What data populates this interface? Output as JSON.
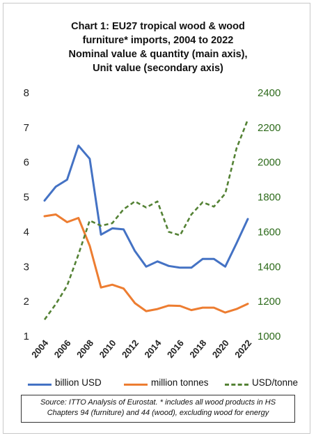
{
  "title_lines": [
    "Chart 1: EU27 tropical wood & wood",
    "furniture* imports, 2004 to 2022",
    "Nominal value & quantity (main axis),",
    "Unit value (secondary axis)"
  ],
  "source_note": "Source: ITTO Analysis of Eurostat. * includes all wood products in HS Chapters 94 (furniture) and 44 (wood), excluding wood for energy",
  "chart_data": {
    "type": "line",
    "x": [
      2004,
      2005,
      2006,
      2007,
      2008,
      2009,
      2010,
      2011,
      2012,
      2013,
      2014,
      2015,
      2016,
      2017,
      2018,
      2019,
      2020,
      2021,
      2022
    ],
    "x_tick_labels": [
      "2004",
      "2006",
      "2008",
      "2010",
      "2012",
      "2014",
      "2016",
      "2018",
      "2020",
      "2022"
    ],
    "ylim": [
      1,
      8
    ],
    "y_ticks": [
      "1",
      "2",
      "3",
      "4",
      "5",
      "6",
      "7",
      "8"
    ],
    "y2lim": [
      1000,
      2400
    ],
    "y2_ticks": [
      "1000",
      "1200",
      "1400",
      "1600",
      "1800",
      "2000",
      "2200",
      "2400"
    ],
    "grid": false,
    "legend_position": "bottom",
    "series": [
      {
        "name": "billion USD",
        "axis": "primary",
        "color": "#4472c4",
        "style": "solid",
        "values": [
          4.9,
          5.3,
          5.5,
          6.48,
          6.1,
          3.92,
          4.1,
          4.07,
          3.45,
          3.0,
          3.15,
          3.02,
          2.97,
          2.97,
          3.22,
          3.22,
          3.0,
          3.67,
          4.37
        ]
      },
      {
        "name": "million tonnes",
        "axis": "primary",
        "color": "#ed7d31",
        "style": "solid",
        "values": [
          4.45,
          4.5,
          4.28,
          4.4,
          3.6,
          2.4,
          2.48,
          2.37,
          1.95,
          1.72,
          1.78,
          1.88,
          1.87,
          1.75,
          1.82,
          1.82,
          1.68,
          1.78,
          1.93
        ]
      },
      {
        "name": "USD/tonne",
        "axis": "secondary",
        "color": "#548235",
        "style": "dashed",
        "values": [
          1095,
          1185,
          1290,
          1470,
          1665,
          1635,
          1650,
          1730,
          1775,
          1740,
          1775,
          1600,
          1580,
          1700,
          1770,
          1745,
          1820,
          2080,
          2245
        ]
      }
    ]
  }
}
